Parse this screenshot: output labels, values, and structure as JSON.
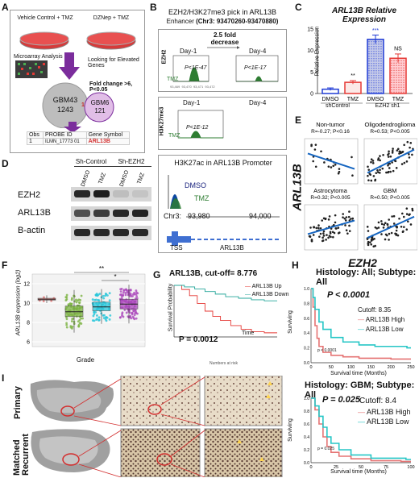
{
  "panels": {
    "A": "A",
    "B": "B",
    "C": "C",
    "D": "D",
    "E": "E",
    "F": "F",
    "G": "G",
    "H": "H",
    "I": "I"
  },
  "panelA": {
    "dish1": "Vehicle Control + TMZ",
    "dish2": "DZNep + TMZ",
    "microarray": "Microarray Analysis",
    "looking": "Looking for Elevated Genes",
    "fold": "Fold change >6, P<0.05",
    "gbm43": "GBM43",
    "gbm43_n": "1243",
    "gbm6": "GBM6",
    "gbm6_n": "121",
    "overlap": "1",
    "table_headers": [
      "Obs",
      "PROBE ID",
      "Gene Symbol"
    ],
    "table_row": [
      "1",
      "ILMN_17773 01",
      "ARL13B"
    ]
  },
  "panelB": {
    "title1": "EZH2/H3K27me3 pick in ARL13B",
    "title2_pre": "Enhancer ",
    "title2_b": "(Chr3: 93470260-93470880)",
    "fold": "2.5 fold decrease",
    "day1": "Day-1",
    "day4": "Day-4",
    "p1": "P<1E-47",
    "p2": "P<1E-17",
    "p3": "P<1E-12",
    "tmz": "TMZ",
    "ezh2": "EZH2",
    "h3k": "H3K27me3",
    "h3k27ac_title": "H3K27ac in ARL13B Promoter",
    "dmso": "DMSO",
    "tmz2": "TMZ",
    "chr": "Chr3:",
    "c1": "93,980",
    "c2": "94,000",
    "tss": "TSS",
    "gene": "ARL13B",
    "ticks": [
      "93,469",
      "93,470",
      "93,471",
      "93,472"
    ]
  },
  "panelC": {
    "title": "ARL13B Relative Expression",
    "ylabel": "Relative Expression",
    "groups": [
      "shControl",
      "EZH2 sh1"
    ],
    "xlabels": [
      "DMSO",
      "TMZ",
      "DMSO",
      "TMZ"
    ],
    "sig": [
      "**",
      "***",
      "NS"
    ],
    "colors": [
      "#1f3bd6",
      "#e53935",
      "#1f3bd6",
      "#e53935"
    ]
  },
  "chart_data": [
    {
      "type": "bar",
      "title": "ARL13B Relative Expression",
      "ylabel": "Relative Expression",
      "categories": [
        "DMSO",
        "TMZ",
        "DMSO",
        "TMZ"
      ],
      "values": [
        1.0,
        2.6,
        12.6,
        8.2
      ],
      "errors": [
        0.3,
        0.4,
        1.0,
        1.0
      ],
      "ylim": [
        0,
        15
      ],
      "yticks": [
        0,
        5,
        10,
        15
      ]
    },
    {
      "type": "line",
      "title": "ARL13B, cut-off= 8.776",
      "ylabel": "Survival Probability",
      "xlabel": "Time",
      "series": [
        {
          "name": "ARL13B Up",
          "color": "#e53935",
          "values": [
            [
              0,
              1.0
            ],
            [
              3,
              0.92
            ],
            [
              6,
              0.8
            ],
            [
              9,
              0.65
            ],
            [
              12,
              0.5
            ],
            [
              15,
              0.4
            ],
            [
              18,
              0.32
            ],
            [
              22,
              0.22
            ],
            [
              26,
              0.15
            ],
            [
              30,
              0.1
            ],
            [
              35,
              0.08
            ],
            [
              40,
              0.08
            ]
          ]
        },
        {
          "name": "ARL13B Down",
          "color": "#26a69a",
          "values": [
            [
              0,
              1.0
            ],
            [
              4,
              0.97
            ],
            [
              8,
              0.93
            ],
            [
              12,
              0.88
            ],
            [
              16,
              0.83
            ],
            [
              20,
              0.78
            ],
            [
              25,
              0.75
            ],
            [
              30,
              0.72
            ],
            [
              35,
              0.7
            ],
            [
              40,
              0.7
            ]
          ]
        }
      ],
      "annotation": "P = 0.0012"
    },
    {
      "type": "line",
      "title": "Histology: All; Subtype: All",
      "ylabel": "Surviving",
      "xlabel": "Survival time (Months)",
      "xlim": [
        0,
        250
      ],
      "xticks": [
        0,
        50,
        100,
        150,
        200,
        250
      ],
      "series": [
        {
          "name": "ARL13B High",
          "color": "#e57373",
          "values": [
            [
              0,
              1.0
            ],
            [
              5,
              0.75
            ],
            [
              10,
              0.5
            ],
            [
              15,
              0.33
            ],
            [
              20,
              0.22
            ],
            [
              30,
              0.14
            ],
            [
              50,
              0.1
            ],
            [
              80,
              0.08
            ],
            [
              120,
              0.06
            ],
            [
              200,
              0.05
            ]
          ]
        },
        {
          "name": "ARL13B Low",
          "color": "#26c6c6",
          "values": [
            [
              0,
              1.0
            ],
            [
              5,
              0.88
            ],
            [
              10,
              0.72
            ],
            [
              20,
              0.55
            ],
            [
              30,
              0.45
            ],
            [
              50,
              0.34
            ],
            [
              80,
              0.28
            ],
            [
              120,
              0.24
            ],
            [
              160,
              0.22
            ],
            [
              240,
              0.2
            ]
          ]
        }
      ],
      "annotation": "P < 0.0001",
      "cutoff": "Cutoff: 8.35"
    },
    {
      "type": "line",
      "title": "Histology: GBM; Subtype: All",
      "ylabel": "Surviving",
      "xlabel": "Survival time (Months)",
      "xlim": [
        0,
        100
      ],
      "xticks": [
        0,
        25,
        50,
        75,
        100
      ],
      "series": [
        {
          "name": "ARL13B High",
          "color": "#e57373",
          "values": [
            [
              0,
              1.0
            ],
            [
              4,
              0.82
            ],
            [
              8,
              0.6
            ],
            [
              12,
              0.4
            ],
            [
              16,
              0.25
            ],
            [
              20,
              0.16
            ],
            [
              28,
              0.1
            ],
            [
              40,
              0.06
            ],
            [
              60,
              0.03
            ],
            [
              90,
              0.02
            ]
          ]
        },
        {
          "name": "ARL13B Low",
          "color": "#26c6c6",
          "values": [
            [
              0,
              1.0
            ],
            [
              4,
              0.88
            ],
            [
              8,
              0.72
            ],
            [
              12,
              0.55
            ],
            [
              16,
              0.4
            ],
            [
              20,
              0.3
            ],
            [
              28,
              0.2
            ],
            [
              40,
              0.12
            ],
            [
              60,
              0.07
            ],
            [
              95,
              0.05
            ]
          ]
        }
      ],
      "annotation": "P = 0.025",
      "cutoff": "Cutoff: 8.4"
    }
  ],
  "panelD": {
    "groups": [
      "Sh-Control",
      "Sh-EZH2"
    ],
    "lanes": [
      "DMSO",
      "TMZ",
      "DMSO",
      "TMZ"
    ],
    "rows": [
      "EZH2",
      "ARL13B",
      "B-actin"
    ],
    "intensity": [
      [
        0.9,
        0.95,
        0.15,
        0.12
      ],
      [
        0.7,
        0.8,
        0.9,
        0.92
      ],
      [
        0.9,
        0.9,
        0.9,
        0.9
      ]
    ]
  },
  "panelE": {
    "ylabel": "ARL13B",
    "xlabel": "EZH2",
    "plots": [
      {
        "name": "Non-tumor",
        "stat": "R=-0.27; P<0.16",
        "slope": -0.4
      },
      {
        "name": "Oligodendroglioma",
        "stat": "R=0.53; P<0.005",
        "slope": 0.6
      },
      {
        "name": "Astrocytoma",
        "stat": "R=0.32; P<0.005",
        "slope": 0.35
      },
      {
        "name": "GBM",
        "stat": "R=0.50; P<0.005",
        "slope": 0.55
      }
    ],
    "yticks1": [
      "7.0",
      "7.5",
      "8.0"
    ],
    "xticks1": [
      "5.15.45.7 6.0"
    ],
    "xticks2": [
      "4",
      "6",
      "8",
      "10"
    ]
  },
  "panelF": {
    "ylabel": "ARL13B expression (log2)",
    "xlabel": "Grade",
    "sig1": "**",
    "sig2": "*",
    "yticks": [
      "12",
      "10",
      "8",
      "6"
    ],
    "boxes": [
      {
        "color": "#e57373",
        "q1": 10.3,
        "med": 10.4,
        "q3": 10.5,
        "n": 5
      },
      {
        "color": "#7cb342",
        "q1": 8.6,
        "med": 9.1,
        "q3": 9.7,
        "n": 80
      },
      {
        "color": "#26c6da",
        "q1": 9.2,
        "med": 9.6,
        "q3": 10.1,
        "n": 70
      },
      {
        "color": "#ab47bc",
        "q1": 9.4,
        "med": 9.9,
        "q3": 10.4,
        "n": 110
      }
    ]
  },
  "panelG": {
    "title": "ARL13B, cut-off= 8.776",
    "ylabel": "Survival Probability",
    "xlabel": "Time",
    "legend": [
      "ARL13B Up",
      "ARL13B Down"
    ],
    "p": "P = 0.0012",
    "risk": "Numbers at risk"
  },
  "panelH": {
    "title1": "Histology: All; Subtype: All",
    "p1": "P < 0.0001",
    "cutoff1": "Cutoff: 8.35",
    "legend": [
      "ARL13B High",
      "ARL13B Low"
    ],
    "small1": "p < 0.0001",
    "title2": "Histology: GBM; Subtype: All",
    "p2": "P = 0.025",
    "cutoff2": "Cutoff: 8.4",
    "small2": "p = 0.025",
    "ylabel": "Surviving",
    "xlabel": "Survival time (Months)",
    "yticks": [
      "1.0",
      "0.8",
      "0.6",
      "0.4",
      "0.2",
      "0.0"
    ],
    "xticks1": [
      "0",
      "50",
      "100",
      "150",
      "200",
      "250"
    ],
    "xticks2": [
      "0",
      "25",
      "50",
      "75",
      "100"
    ]
  },
  "panelI": {
    "primary": "Primary",
    "recurrent": "Matched Recurrent"
  }
}
